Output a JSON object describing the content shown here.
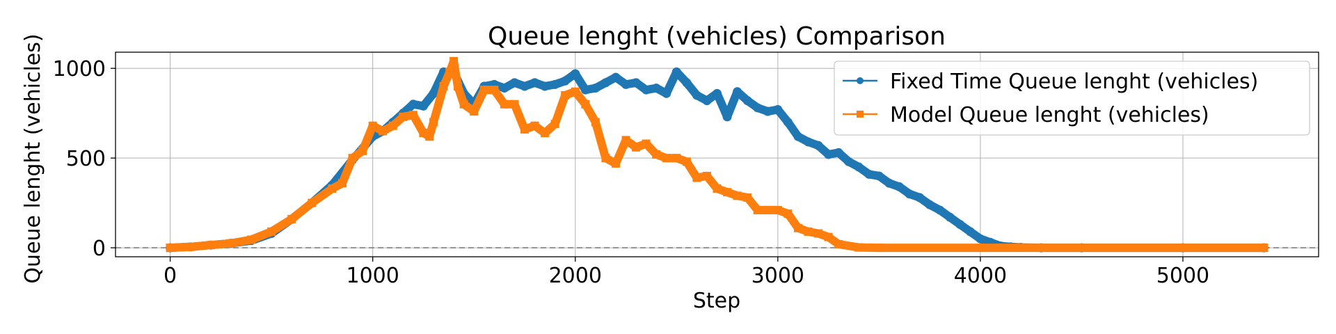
{
  "chart_data": {
    "type": "line",
    "title": "Queue lenght (vehicles) Comparison",
    "xlabel": "Step",
    "ylabel": "Queue lenght (vehicles)",
    "xlim": [
      -270,
      5670
    ],
    "ylim": [
      -50,
      1090
    ],
    "xticks": [
      0,
      1000,
      2000,
      3000,
      4000,
      5000
    ],
    "yticks": [
      0,
      500,
      1000
    ],
    "grid": true,
    "legend_position": "top-right",
    "reference_line": {
      "y": 0,
      "style": "dashed",
      "color": "#808080"
    },
    "series": [
      {
        "name": "Fixed Time Queue lenght (vehicles)",
        "color": "#1f77b4",
        "marker": "circle",
        "x": [
          0,
          100,
          200,
          300,
          400,
          500,
          600,
          700,
          800,
          900,
          1000,
          1050,
          1100,
          1150,
          1200,
          1250,
          1300,
          1350,
          1400,
          1450,
          1500,
          1550,
          1600,
          1650,
          1700,
          1750,
          1800,
          1850,
          1900,
          1950,
          2000,
          2050,
          2100,
          2150,
          2200,
          2250,
          2300,
          2350,
          2400,
          2450,
          2500,
          2550,
          2600,
          2650,
          2700,
          2750,
          2800,
          2850,
          2900,
          2950,
          3000,
          3050,
          3100,
          3150,
          3200,
          3250,
          3300,
          3350,
          3400,
          3450,
          3500,
          3550,
          3600,
          3650,
          3700,
          3750,
          3800,
          3850,
          3900,
          3950,
          4000,
          4050,
          4100,
          4150,
          4200,
          4300,
          4500,
          5000,
          5400
        ],
        "y": [
          0,
          5,
          15,
          25,
          40,
          80,
          160,
          250,
          350,
          490,
          620,
          650,
          700,
          750,
          800,
          790,
          860,
          980,
          980,
          860,
          800,
          900,
          910,
          890,
          920,
          900,
          920,
          900,
          910,
          930,
          970,
          880,
          890,
          920,
          950,
          910,
          920,
          880,
          890,
          860,
          980,
          920,
          850,
          820,
          860,
          730,
          870,
          820,
          780,
          760,
          770,
          700,
          620,
          590,
          570,
          520,
          530,
          480,
          450,
          410,
          400,
          360,
          340,
          300,
          280,
          240,
          210,
          170,
          130,
          90,
          50,
          30,
          10,
          5,
          2,
          0,
          0,
          0,
          0
        ]
      },
      {
        "name": "Model Queue lenght (vehicles)",
        "color": "#ff7f0e",
        "marker": "square",
        "x": [
          0,
          100,
          200,
          300,
          400,
          500,
          600,
          700,
          800,
          850,
          900,
          950,
          1000,
          1050,
          1100,
          1150,
          1200,
          1250,
          1280,
          1300,
          1350,
          1380,
          1400,
          1420,
          1450,
          1500,
          1550,
          1600,
          1650,
          1700,
          1750,
          1800,
          1850,
          1900,
          1950,
          2000,
          2050,
          2100,
          2150,
          2200,
          2250,
          2300,
          2350,
          2400,
          2450,
          2500,
          2550,
          2600,
          2650,
          2700,
          2750,
          2800,
          2850,
          2900,
          2950,
          3000,
          3050,
          3100,
          3150,
          3200,
          3250,
          3300,
          3400,
          3500,
          4000,
          5000,
          5400
        ],
        "y": [
          0,
          5,
          15,
          25,
          45,
          90,
          160,
          250,
          330,
          360,
          500,
          540,
          680,
          650,
          680,
          730,
          740,
          640,
          620,
          700,
          900,
          980,
          1040,
          900,
          800,
          760,
          880,
          880,
          800,
          800,
          660,
          680,
          640,
          690,
          850,
          870,
          800,
          700,
          500,
          470,
          600,
          560,
          580,
          520,
          500,
          500,
          480,
          390,
          400,
          330,
          310,
          290,
          280,
          210,
          210,
          210,
          190,
          110,
          90,
          80,
          60,
          20,
          2,
          0,
          0,
          0,
          0
        ]
      }
    ]
  }
}
